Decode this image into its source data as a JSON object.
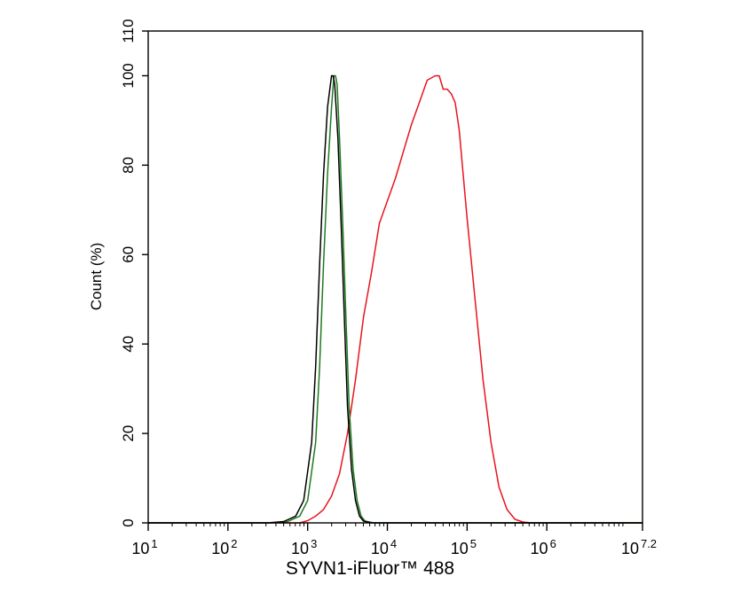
{
  "chart_data": {
    "type": "line",
    "title": "",
    "xlabel": "SYVN1-iFluor™ 488",
    "ylabel": "Count  (%)",
    "xscale": "log",
    "xlim": [
      10,
      15848931.92
    ],
    "ylim": [
      0,
      110
    ],
    "grid": false,
    "legend": "none",
    "x_ticks": [
      {
        "exp": "1",
        "value": 10
      },
      {
        "exp": "2",
        "value": 100
      },
      {
        "exp": "3",
        "value": 1000
      },
      {
        "exp": "4",
        "value": 10000
      },
      {
        "exp": "5",
        "value": 100000
      },
      {
        "exp": "6",
        "value": 1000000
      },
      {
        "exp": "7.2",
        "value": 15848931.92
      }
    ],
    "x_tick_base": "10",
    "y_ticks": [
      0,
      20,
      40,
      60,
      80,
      100,
      110
    ],
    "series": [
      {
        "color": "#000000",
        "x": [
          10,
          316,
          501,
          708,
          891,
          1122,
          1259,
          1413,
          1585,
          1778,
          1995,
          2089,
          2188,
          2399,
          2630,
          2884,
          3162,
          3548,
          3981,
          4467,
          5012,
          6310,
          15848931.92
        ],
        "y": [
          0,
          0,
          0.3,
          1.5,
          5,
          18,
          35,
          58,
          78,
          93,
          100,
          100,
          98,
          86,
          67,
          46,
          26,
          12,
          5,
          1.5,
          0.4,
          0,
          0
        ]
      },
      {
        "color": "#1f7a1f",
        "x": [
          10,
          355,
          562,
          794,
          1000,
          1259,
          1413,
          1585,
          1778,
          1995,
          2138,
          2239,
          2344,
          2512,
          2754,
          3020,
          3311,
          3715,
          4169,
          4677,
          5248,
          6761,
          15848931.92
        ],
        "y": [
          0,
          0,
          0.3,
          1.5,
          5,
          18,
          35,
          58,
          78,
          93,
          100,
          100,
          98,
          86,
          67,
          46,
          26,
          12,
          5,
          1.5,
          0.4,
          0,
          0
        ]
      },
      {
        "color": "#e8141e",
        "x": [
          10,
          794,
          1000,
          1259,
          1585,
          1995,
          2512,
          3162,
          3981,
          5012,
          6310,
          7943,
          10000,
          12589,
          15849,
          19953,
          25119,
          31623,
          39811,
          44668,
          50119,
          56234,
          63096,
          70795,
          79433,
          100000,
          125893,
          158489,
          199526,
          251189,
          316228,
          398107,
          501187,
          630957,
          15848931.92
        ],
        "y": [
          0,
          0,
          0.5,
          1.5,
          3,
          6,
          11,
          20,
          32,
          46,
          56,
          67,
          72,
          77,
          83,
          89,
          94,
          99,
          100,
          100,
          97,
          97,
          96,
          94,
          88,
          68,
          50,
          32,
          18,
          8,
          3,
          0.8,
          0.2,
          0,
          0
        ]
      }
    ]
  }
}
